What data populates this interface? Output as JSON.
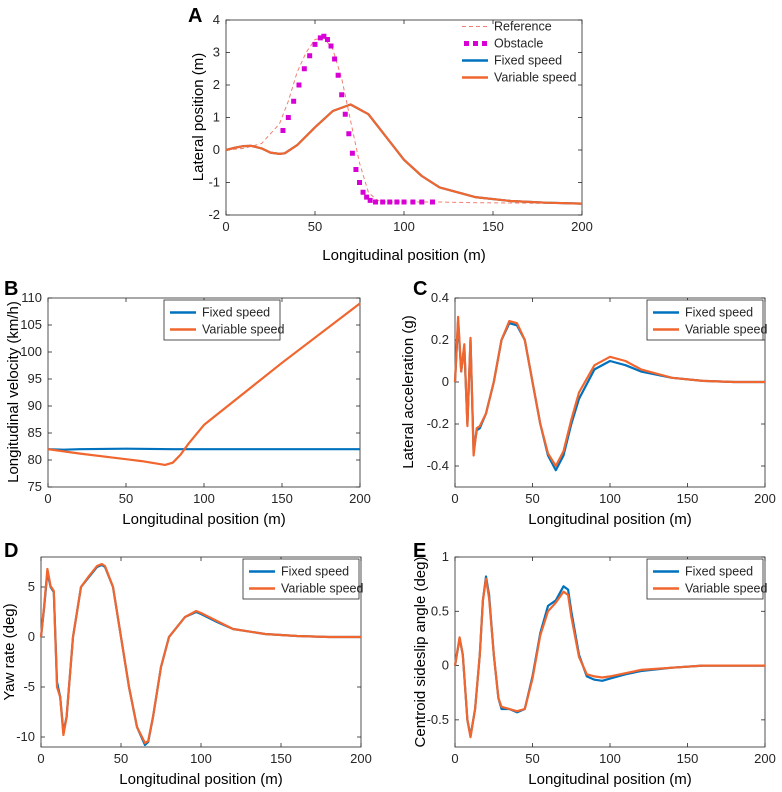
{
  "chart_data": [
    {
      "panel": "A",
      "type": "line",
      "xlabel": "Longitudinal position (m)",
      "ylabel": "Lateral position (m)",
      "xlim": [
        0,
        200
      ],
      "ylim": [
        -2,
        4
      ],
      "xticks": [
        0,
        50,
        100,
        150,
        200
      ],
      "yticks": [
        -2,
        -1,
        0,
        1,
        2,
        3,
        4
      ],
      "legend": {
        "position": "top-right",
        "boxed": false
      },
      "series": [
        {
          "name": "Reference",
          "color": "#f08070",
          "style": "dashed",
          "x": [
            0,
            10,
            20,
            30,
            35,
            40,
            45,
            50,
            55,
            60,
            65,
            70,
            75,
            80,
            85,
            90,
            100,
            110,
            120,
            140,
            160,
            180,
            200
          ],
          "y": [
            0,
            0.05,
            0.2,
            0.8,
            1.5,
            2.4,
            3.0,
            3.4,
            3.45,
            3.1,
            2.2,
            0.9,
            -0.4,
            -1.3,
            -1.55,
            -1.6,
            -1.6,
            -1.6,
            -1.6,
            -1.62,
            -1.63,
            -1.64,
            -1.65
          ]
        },
        {
          "name": "Obstacle",
          "color": "#d700d7",
          "style": "markers",
          "x": [
            32,
            35,
            38,
            41,
            44,
            47,
            50,
            53,
            55,
            57,
            59,
            61,
            63,
            65,
            67,
            69,
            71,
            73,
            75,
            77,
            79,
            81,
            84,
            88,
            92,
            96,
            100,
            105,
            110,
            116
          ],
          "y": [
            0.6,
            1.0,
            1.5,
            2.0,
            2.5,
            2.9,
            3.25,
            3.45,
            3.5,
            3.4,
            3.2,
            2.8,
            2.3,
            1.7,
            1.1,
            0.5,
            -0.1,
            -0.6,
            -1.0,
            -1.3,
            -1.45,
            -1.55,
            -1.6,
            -1.6,
            -1.6,
            -1.6,
            -1.6,
            -1.6,
            -1.6,
            -1.6
          ]
        },
        {
          "name": "Fixed speed",
          "color": "#0072bd",
          "style": "solid",
          "x": [
            0,
            5,
            10,
            14,
            20,
            25,
            30,
            33,
            40,
            50,
            60,
            70,
            80,
            90,
            100,
            110,
            120,
            140,
            160,
            180,
            200
          ],
          "y": [
            0,
            0.07,
            0.12,
            0.13,
            0.05,
            -0.08,
            -0.12,
            -0.1,
            0.15,
            0.7,
            1.2,
            1.4,
            1.1,
            0.4,
            -0.3,
            -0.8,
            -1.15,
            -1.45,
            -1.57,
            -1.62,
            -1.65
          ]
        },
        {
          "name": "Variable speed",
          "color": "#f0662e",
          "style": "solid",
          "x": [
            0,
            5,
            10,
            14,
            20,
            25,
            30,
            33,
            40,
            50,
            60,
            70,
            80,
            90,
            100,
            110,
            120,
            140,
            160,
            180,
            200
          ],
          "y": [
            0,
            0.07,
            0.12,
            0.13,
            0.05,
            -0.08,
            -0.12,
            -0.1,
            0.15,
            0.7,
            1.2,
            1.4,
            1.1,
            0.4,
            -0.3,
            -0.8,
            -1.15,
            -1.45,
            -1.57,
            -1.62,
            -1.65
          ]
        }
      ]
    },
    {
      "panel": "B",
      "type": "line",
      "xlabel": "Longitudinal position (m)",
      "ylabel": "Longitudinal velocity (km/h)",
      "xlim": [
        0,
        200
      ],
      "ylim": [
        75,
        110
      ],
      "xticks": [
        0,
        50,
        100,
        150,
        200
      ],
      "yticks": [
        75,
        80,
        85,
        90,
        95,
        100,
        105,
        110
      ],
      "legend": {
        "position": "top-center",
        "boxed": true
      },
      "series": [
        {
          "name": "Fixed speed",
          "color": "#0072bd",
          "style": "solid",
          "x": [
            0,
            10,
            20,
            50,
            80,
            100,
            150,
            200
          ],
          "y": [
            82,
            81.9,
            82,
            82.1,
            82,
            82,
            82,
            82
          ]
        },
        {
          "name": "Variable speed",
          "color": "#f0662e",
          "style": "solid",
          "x": [
            0,
            20,
            40,
            60,
            75,
            80,
            85,
            90,
            100,
            150,
            200
          ],
          "y": [
            82,
            81.2,
            80.5,
            79.8,
            79.1,
            79.5,
            81,
            83,
            86.5,
            98,
            109
          ]
        }
      ]
    },
    {
      "panel": "C",
      "type": "line",
      "xlabel": "Longitudinal position (m)",
      "ylabel": "Lateral acceleration (g)",
      "xlim": [
        0,
        200
      ],
      "ylim": [
        -0.5,
        0.4
      ],
      "xticks": [
        0,
        50,
        100,
        150,
        200
      ],
      "yticks": [
        -0.4,
        -0.2,
        0,
        0.2,
        0.4
      ],
      "legend": {
        "position": "top-right",
        "boxed": true
      },
      "series": [
        {
          "name": "Fixed speed",
          "color": "#0072bd",
          "style": "solid",
          "x": [
            0,
            2,
            4,
            6,
            8,
            10,
            12,
            14,
            16,
            20,
            25,
            30,
            35,
            40,
            45,
            50,
            55,
            60,
            65,
            70,
            75,
            80,
            90,
            100,
            110,
            120,
            140,
            160,
            180,
            200
          ],
          "y": [
            0,
            0.29,
            0.05,
            0.17,
            -0.2,
            0.2,
            -0.33,
            -0.23,
            -0.22,
            -0.15,
            0.0,
            0.2,
            0.28,
            0.27,
            0.2,
            0.0,
            -0.2,
            -0.35,
            -0.42,
            -0.35,
            -0.2,
            -0.08,
            0.06,
            0.1,
            0.08,
            0.05,
            0.02,
            0.005,
            0.0,
            0.0
          ]
        },
        {
          "name": "Variable speed",
          "color": "#f0662e",
          "style": "solid",
          "x": [
            0,
            2,
            4,
            6,
            8,
            10,
            12,
            14,
            16,
            20,
            25,
            30,
            35,
            40,
            45,
            50,
            55,
            60,
            65,
            70,
            75,
            80,
            90,
            100,
            110,
            120,
            140,
            160,
            180,
            200
          ],
          "y": [
            0,
            0.31,
            0.05,
            0.18,
            -0.21,
            0.21,
            -0.35,
            -0.22,
            -0.21,
            -0.15,
            0.0,
            0.2,
            0.29,
            0.28,
            0.2,
            0.0,
            -0.2,
            -0.34,
            -0.4,
            -0.33,
            -0.18,
            -0.05,
            0.08,
            0.12,
            0.1,
            0.06,
            0.02,
            0.005,
            0.0,
            0.0
          ]
        }
      ]
    },
    {
      "panel": "D",
      "type": "line",
      "xlabel": "Longitudinal position (m)",
      "ylabel": "Yaw rate (deg)",
      "xlim": [
        0,
        200
      ],
      "ylim": [
        -11,
        8
      ],
      "xticks": [
        0,
        50,
        100,
        150,
        200
      ],
      "yticks": [
        -10,
        -5,
        0,
        5
      ],
      "legend": {
        "position": "top-right",
        "boxed": true
      },
      "series": [
        {
          "name": "Fixed speed",
          "color": "#0072bd",
          "style": "solid",
          "x": [
            0,
            2,
            4,
            6,
            8,
            10,
            12,
            14,
            16,
            20,
            25,
            30,
            35,
            38,
            40,
            45,
            50,
            55,
            60,
            65,
            67,
            70,
            75,
            80,
            90,
            97,
            100,
            110,
            120,
            140,
            160,
            180,
            200
          ],
          "y": [
            0,
            3,
            6.5,
            5,
            4.5,
            -4.5,
            -6,
            -9.5,
            -8,
            0,
            5,
            6,
            7,
            7.2,
            7,
            5,
            0,
            -5,
            -9,
            -10.8,
            -10.5,
            -8,
            -3,
            0,
            2,
            2.5,
            2.3,
            1.5,
            0.8,
            0.3,
            0.1,
            0,
            0
          ]
        },
        {
          "name": "Variable speed",
          "color": "#f0662e",
          "style": "solid",
          "x": [
            0,
            2,
            4,
            6,
            8,
            10,
            12,
            14,
            16,
            20,
            25,
            30,
            35,
            38,
            40,
            45,
            50,
            55,
            60,
            65,
            67,
            70,
            75,
            80,
            90,
            97,
            100,
            110,
            120,
            140,
            160,
            180,
            200
          ],
          "y": [
            0,
            3.2,
            6.8,
            5.1,
            4.6,
            -5,
            -6,
            -9.8,
            -8,
            0,
            5,
            6.1,
            7.1,
            7.3,
            7.1,
            5,
            0,
            -5,
            -9,
            -10.6,
            -10.4,
            -8,
            -3,
            0,
            2,
            2.6,
            2.4,
            1.6,
            0.8,
            0.3,
            0.1,
            0,
            0
          ]
        }
      ]
    },
    {
      "panel": "E",
      "type": "line",
      "xlabel": "Longitudinal position (m)",
      "ylabel": "Centroid sideslip angle (deg)",
      "xlim": [
        0,
        200
      ],
      "ylim": [
        -0.75,
        1
      ],
      "xticks": [
        0,
        50,
        100,
        150,
        200
      ],
      "yticks": [
        -0.5,
        0,
        0.5,
        1
      ],
      "legend": {
        "position": "top-right",
        "boxed": true
      },
      "series": [
        {
          "name": "Fixed speed",
          "color": "#0072bd",
          "style": "solid",
          "x": [
            0,
            3,
            5,
            8,
            10,
            13,
            16,
            18,
            20,
            22,
            25,
            28,
            30,
            35,
            40,
            45,
            50,
            55,
            60,
            65,
            70,
            73,
            75,
            80,
            85,
            90,
            95,
            100,
            110,
            120,
            140,
            160,
            180,
            200
          ],
          "y": [
            0,
            0.25,
            0.1,
            -0.5,
            -0.65,
            -0.4,
            0.1,
            0.6,
            0.82,
            0.65,
            0.1,
            -0.3,
            -0.4,
            -0.4,
            -0.43,
            -0.4,
            -0.1,
            0.3,
            0.55,
            0.6,
            0.73,
            0.7,
            0.5,
            0.1,
            -0.1,
            -0.13,
            -0.14,
            -0.12,
            -0.08,
            -0.05,
            -0.02,
            0,
            0,
            0
          ]
        },
        {
          "name": "Variable speed",
          "color": "#f0662e",
          "style": "solid",
          "x": [
            0,
            3,
            5,
            8,
            10,
            13,
            16,
            18,
            20,
            22,
            25,
            28,
            30,
            35,
            40,
            45,
            50,
            55,
            60,
            65,
            70,
            73,
            75,
            80,
            85,
            90,
            95,
            100,
            110,
            120,
            140,
            160,
            180,
            200
          ],
          "y": [
            0,
            0.26,
            0.1,
            -0.5,
            -0.66,
            -0.4,
            0.1,
            0.6,
            0.8,
            0.62,
            0.1,
            -0.3,
            -0.38,
            -0.4,
            -0.42,
            -0.4,
            -0.12,
            0.28,
            0.5,
            0.58,
            0.68,
            0.65,
            0.45,
            0.08,
            -0.08,
            -0.1,
            -0.11,
            -0.1,
            -0.07,
            -0.04,
            -0.02,
            0,
            0,
            0
          ]
        }
      ]
    }
  ]
}
